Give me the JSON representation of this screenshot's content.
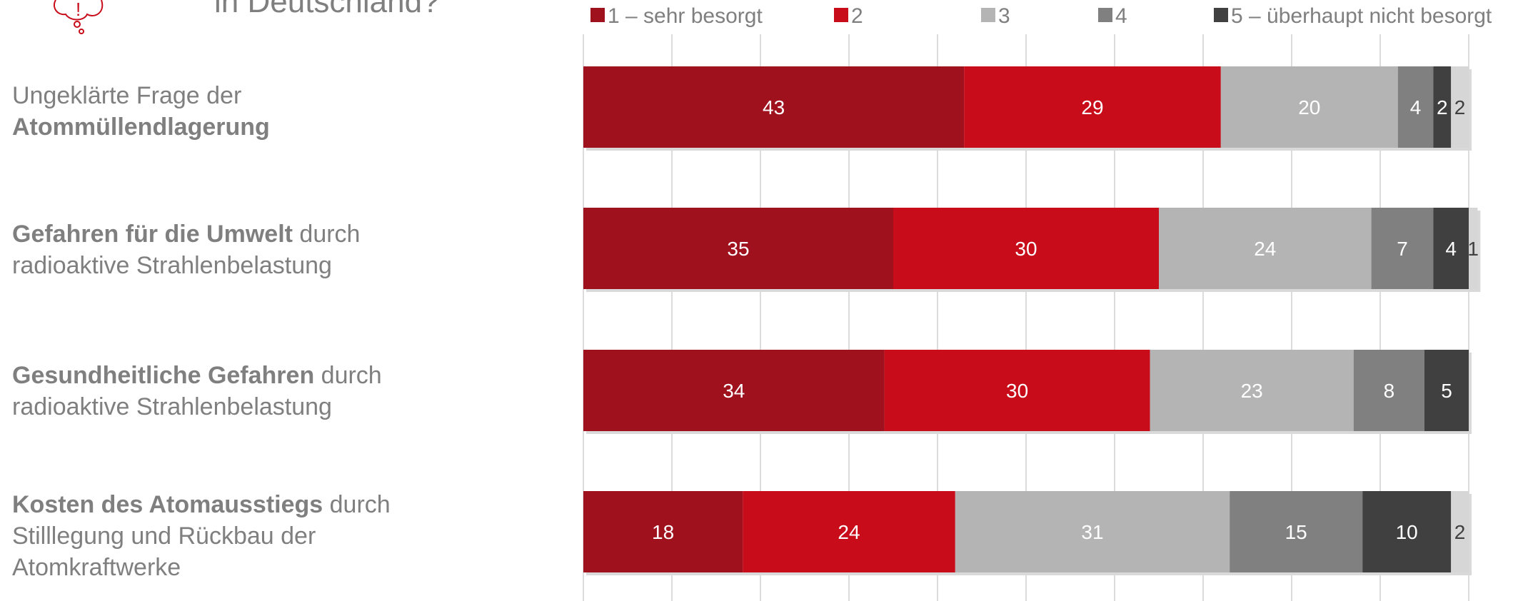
{
  "header": {
    "title_fragment": "in Deutschland?"
  },
  "categories_text": [
    {
      "bold_first": false,
      "plain1": "Ungeklärte Frage der",
      "bold": "Atommüllendlagerung",
      "plain2": ""
    },
    {
      "bold_first": true,
      "bold": "Gefahren für die Umwelt",
      "plain1": " durch",
      "plain2": "radioaktive Strahlenbelastung"
    },
    {
      "bold_first": true,
      "bold": "Gesundheitliche Gefahren",
      "plain1": " durch",
      "plain2": "radioaktive Strahlenbelastung"
    },
    {
      "bold_first": true,
      "bold": "Kosten des Atomausstiegs",
      "plain1": " durch",
      "plain2": "Stilllegung und Rückbau der",
      "plain3": "Atomkraftwerke"
    }
  ],
  "chart_data": {
    "type": "bar",
    "orientation": "horizontal",
    "stacked": true,
    "stacked_100": true,
    "categories": [
      "Ungeklärte Frage der Atommüllendlagerung",
      "Gefahren für die Umwelt durch radioaktive Strahlenbelastung",
      "Gesundheitliche Gefahren durch radioaktive Strahlenbelastung",
      "Kosten des Atomausstiegs durch Stilllegung und Rückbau der Atomkraftwerke"
    ],
    "series": [
      {
        "name": "1 – sehr besorgt",
        "color": "#9e111d",
        "values": [
          43,
          35,
          34,
          18
        ]
      },
      {
        "name": "2",
        "color": "#c80c1a",
        "values": [
          29,
          30,
          30,
          24
        ]
      },
      {
        "name": "3",
        "color": "#b4b4b4",
        "values": [
          20,
          24,
          23,
          31
        ]
      },
      {
        "name": "4",
        "color": "#808080",
        "values": [
          4,
          7,
          8,
          15
        ]
      },
      {
        "name": "5 – überhaupt nicht besorgt",
        "color": "#404040",
        "values": [
          2,
          4,
          5,
          10
        ]
      },
      {
        "name": "",
        "color": "#d6d6d6",
        "values": [
          2,
          1,
          0,
          2
        ]
      }
    ],
    "labels_shown": [
      [
        43,
        29,
        20,
        4,
        2,
        2
      ],
      [
        35,
        30,
        24,
        7,
        4,
        1
      ],
      [
        34,
        30,
        23,
        8,
        5,
        null
      ],
      [
        18,
        24,
        31,
        15,
        10,
        2
      ]
    ],
    "xlim": [
      0,
      100
    ],
    "grid": true,
    "legend_position": "top"
  }
}
